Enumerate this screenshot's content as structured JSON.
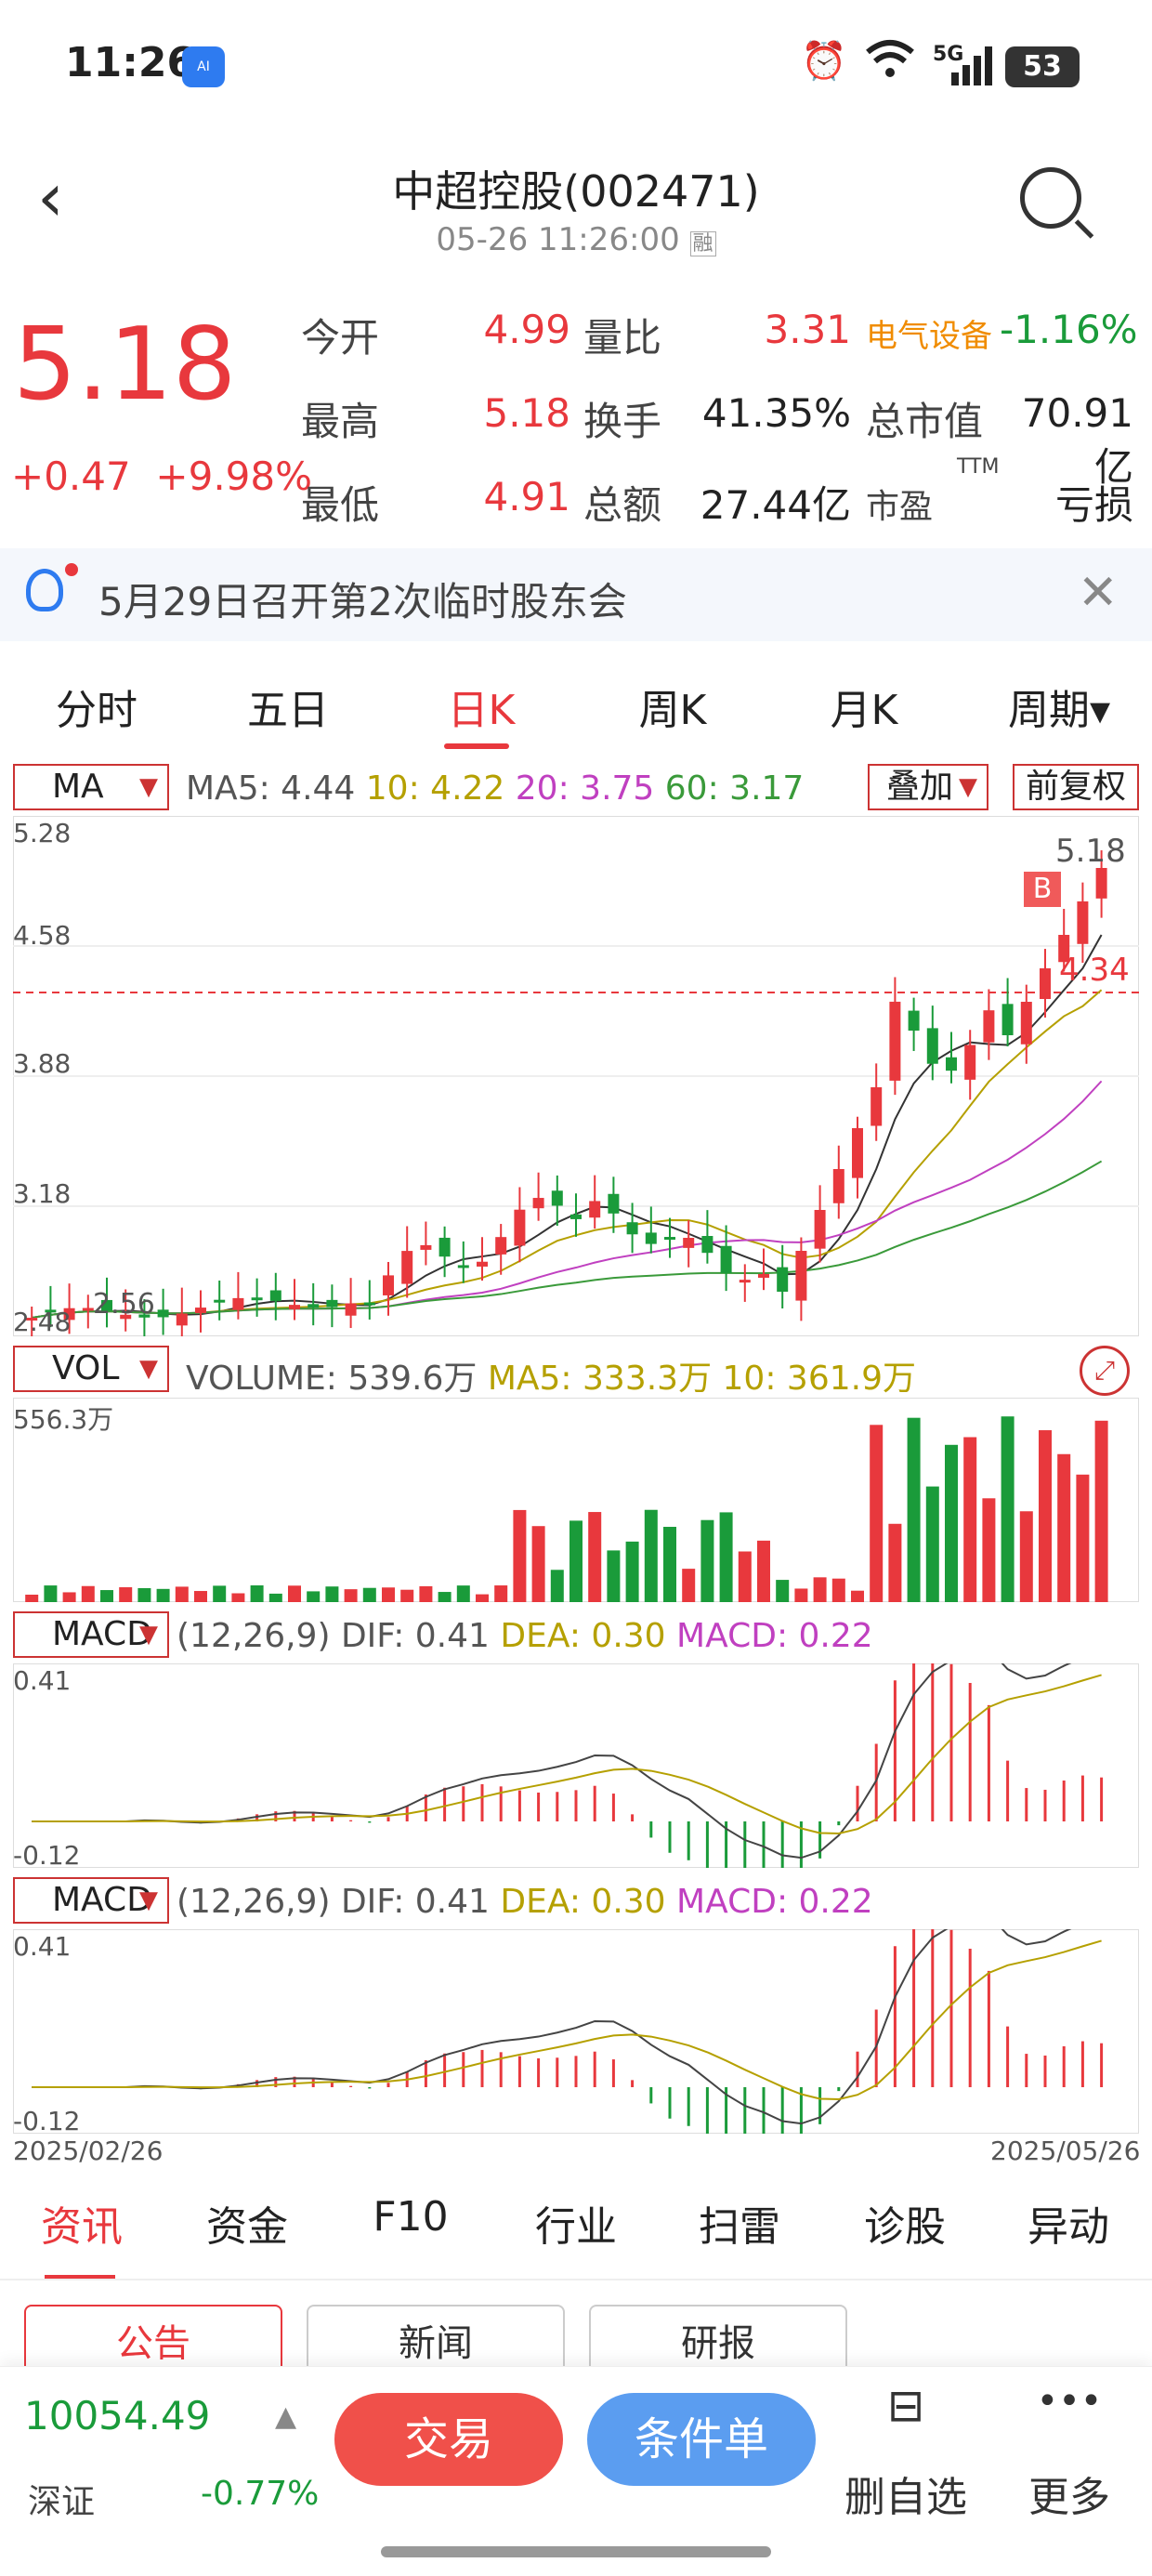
{
  "status_bar": {
    "time": "11:26",
    "app_badge": "AI",
    "network": "5G",
    "battery": "53"
  },
  "header": {
    "back_icon": "chevron-left-icon",
    "title": "中超控股(002471)",
    "subtitle": "05-26 11:26:00",
    "sub_badge": "融"
  },
  "quote": {
    "price": "5.18",
    "change": "+0.47",
    "change_pct": "+9.98%",
    "rows": [
      [
        {
          "label": "今开",
          "value": "4.99",
          "color": "red"
        },
        {
          "label": "量比",
          "value": "3.31",
          "color": "red"
        },
        {
          "label": "电气设备",
          "value": "-1.16%",
          "color": "green"
        }
      ],
      [
        {
          "label": "最高",
          "value": "5.18",
          "color": "red"
        },
        {
          "label": "换手",
          "value": "41.35%",
          "color": "black"
        },
        {
          "label": "总市值",
          "value": "70.91亿",
          "color": "black"
        }
      ],
      [
        {
          "label": "最低",
          "value": "4.91",
          "color": "red"
        },
        {
          "label": "总额",
          "value": "27.44亿",
          "color": "black"
        },
        {
          "label": "市盈",
          "value": "亏损",
          "color": "black",
          "superscript": "TTM"
        }
      ]
    ]
  },
  "notice": {
    "text": "5月29日召开第2次临时股东会"
  },
  "period_tabs": [
    {
      "label": "分时"
    },
    {
      "label": "五日"
    },
    {
      "label": "日K",
      "active": true
    },
    {
      "label": "周K"
    },
    {
      "label": "月K"
    },
    {
      "label": "周期▾"
    }
  ],
  "kline": {
    "selector": "MA",
    "ma5": "MA5: 4.44",
    "ma10": "10: 4.22",
    "ma20": "20: 3.75",
    "ma60": "60: 3.17",
    "overlay_btn": "叠加",
    "fq_btn": "前复权",
    "y_labels": [
      "5.28",
      "4.58",
      "3.88",
      "3.18",
      "2.48"
    ],
    "last_price": "5.18",
    "buy_mark": "B",
    "buy_price": "4.34",
    "low_label": "2.56"
  },
  "volume": {
    "selector": "VOL",
    "label": "VOLUME: 539.6万",
    "ma5": "MA5: 333.3万",
    "ma10": "10: 361.9万",
    "max_label": "556.3万"
  },
  "macd1": {
    "selector": "MACD",
    "params": "(12,26,9)",
    "dif": "DIF: 0.41",
    "dea": "DEA: 0.30",
    "macd": "MACD: 0.22",
    "top": "0.41",
    "bottom": "-0.12"
  },
  "macd2": {
    "selector": "MACD",
    "params": "(12,26,9)",
    "dif": "DIF: 0.41",
    "dea": "DEA: 0.30",
    "macd": "MACD: 0.22",
    "top": "0.41",
    "bottom": "-0.12"
  },
  "date_range": {
    "start": "2025/02/26",
    "end": "2025/05/26"
  },
  "bottom_tabs": [
    {
      "label": "资讯",
      "active": true
    },
    {
      "label": "资金"
    },
    {
      "label": "F10"
    },
    {
      "label": "行业"
    },
    {
      "label": "扫雷"
    },
    {
      "label": "诊股"
    },
    {
      "label": "异动"
    }
  ],
  "sub_tabs": [
    {
      "label": "公告",
      "active": true
    },
    {
      "label": "新闻"
    },
    {
      "label": "研报"
    }
  ],
  "bottom_bar": {
    "index_value": "10054.49",
    "index_name": "深证",
    "index_change": "-0.77%",
    "trade": "交易",
    "condition": "条件单",
    "remove": "删自选",
    "more": "更多"
  },
  "colors": {
    "up": "#e8383d",
    "down": "#1a9b3a",
    "ma5": "#333333",
    "ma10": "#b5a000",
    "ma20": "#c040c0",
    "ma60": "#3a9a3a"
  }
}
